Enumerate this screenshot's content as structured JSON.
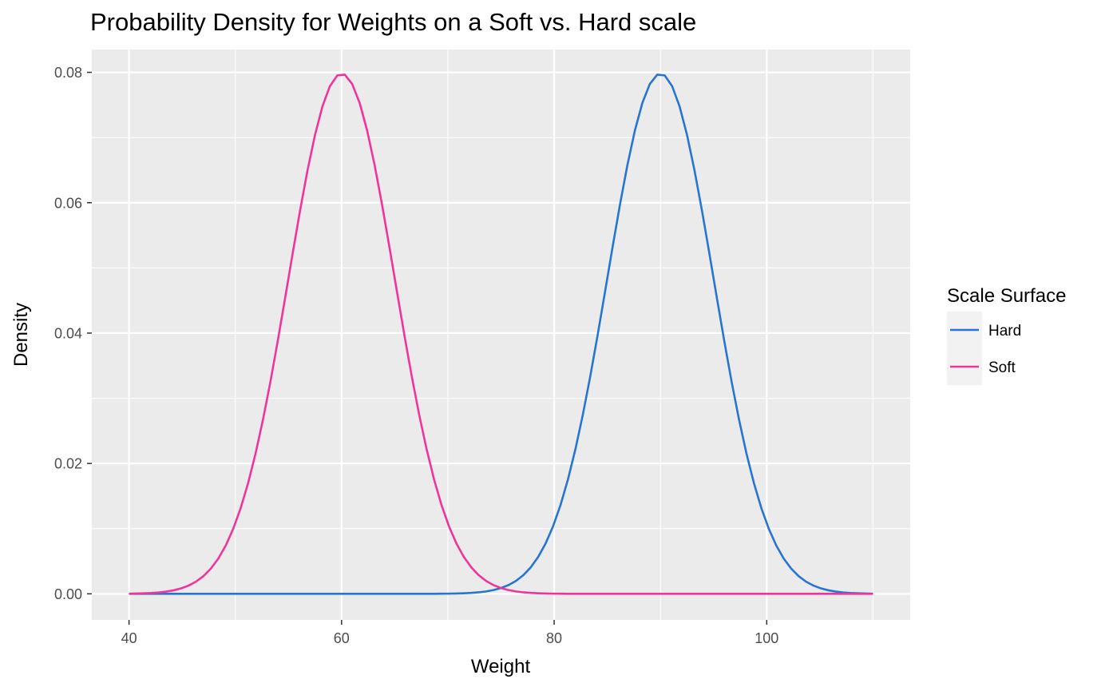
{
  "chart_data": {
    "type": "line",
    "title": "Probability Density for Weights on a Soft vs. Hard scale",
    "xlabel": "Weight",
    "ylabel": "Density",
    "xlim": [
      36.5,
      113.5
    ],
    "ylim": [
      -0.004,
      0.0835
    ],
    "x_ticks": [
      40,
      60,
      80,
      100
    ],
    "y_ticks": [
      0.0,
      0.02,
      0.04,
      0.06,
      0.08
    ],
    "x_tick_labels": [
      "40",
      "60",
      "80",
      "100"
    ],
    "y_tick_labels": [
      "0.00",
      "0.02",
      "0.04",
      "0.06",
      "0.08"
    ],
    "x_range": [
      40,
      110
    ],
    "grid": true,
    "legend": {
      "title": "Scale Surface",
      "placement": "right",
      "entries": [
        "Hard",
        "Soft"
      ]
    },
    "series": [
      {
        "name": "Hard",
        "color": "#2775d0",
        "distribution": "normal",
        "mean": 90,
        "sd": 5
      },
      {
        "name": "Soft",
        "color": "#f0359a",
        "distribution": "normal",
        "mean": 60,
        "sd": 5
      }
    ],
    "panel_background": "#ebebeb",
    "grid_color": "#ffffff"
  }
}
